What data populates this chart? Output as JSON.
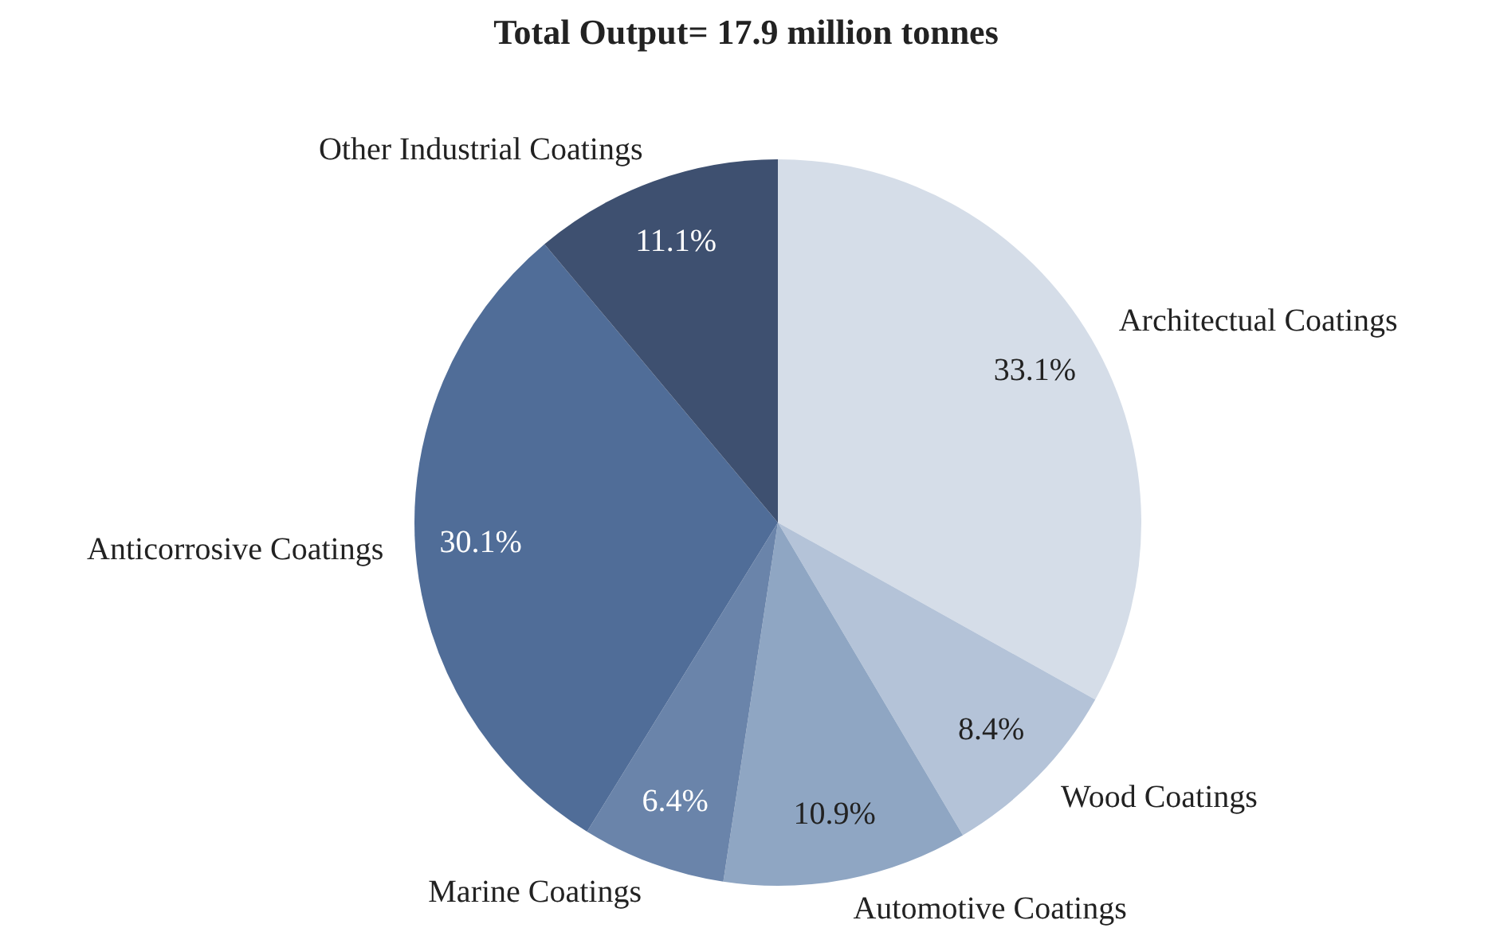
{
  "chart_data": {
    "type": "pie",
    "title": "Total Output= 17.9 million tonnes",
    "categories": [
      "Architectual Coatings",
      "Wood Coatings",
      "Automotive Coatings",
      "Marine Coatings",
      "Anticorrosive Coatings",
      "Other Industrial Coatings"
    ],
    "values": [
      33.1,
      8.4,
      10.9,
      6.4,
      30.1,
      11.1
    ],
    "value_labels": [
      "33.1%",
      "8.4%",
      "10.9%",
      "6.4%",
      "30.1%",
      "11.1%"
    ],
    "colors": [
      "#d5dde8",
      "#b4c3d8",
      "#8fa6c3",
      "#6a84aa",
      "#506d98",
      "#3e5070"
    ],
    "legend": false
  }
}
